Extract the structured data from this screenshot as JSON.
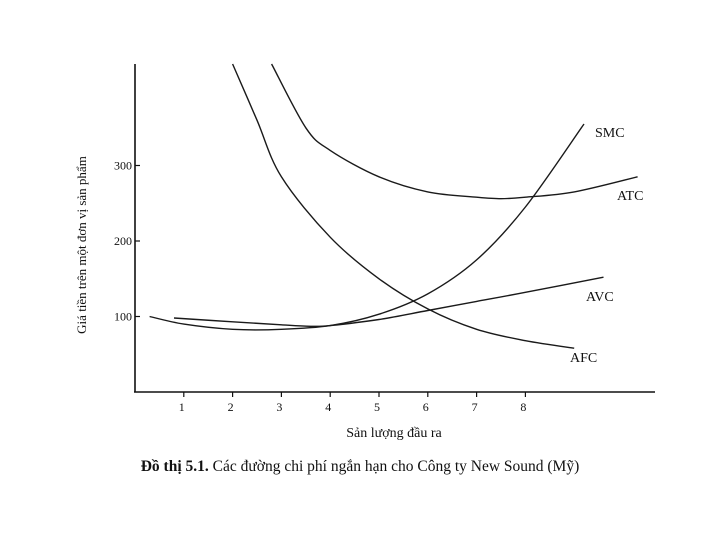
{
  "chart_data": {
    "type": "line",
    "title": "",
    "xlabel": "Sản lượng đầu ra",
    "ylabel": "Giá tiền trên một đơn vị sản phẩm",
    "x_ticks": [
      1,
      2,
      3,
      4,
      5,
      6,
      7,
      8
    ],
    "y_ticks": [
      100,
      200,
      300
    ],
    "xlim": [
      0,
      10.7
    ],
    "ylim": [
      0,
      440
    ],
    "grid": false,
    "series": [
      {
        "name": "SMC",
        "x": [
          0.3,
          1,
          2,
          3,
          4,
          5,
          6,
          7,
          8,
          9.2
        ],
        "y": [
          100,
          90,
          83,
          83,
          88,
          103,
          130,
          175,
          245,
          355
        ]
      },
      {
        "name": "ATC",
        "x": [
          2.8,
          3.5,
          4,
          5,
          6,
          7,
          7.5,
          8,
          9,
          10.3
        ],
        "y": [
          440,
          350,
          320,
          285,
          265,
          258,
          256,
          258,
          265,
          285
        ]
      },
      {
        "name": "AVC",
        "x": [
          0.8,
          2,
          3,
          3.6,
          4,
          5,
          6,
          7,
          8,
          9.6
        ],
        "y": [
          98,
          93,
          89,
          87,
          88,
          96,
          108,
          120,
          132,
          152
        ]
      },
      {
        "name": "AFC",
        "x": [
          2,
          2.5,
          3,
          4,
          5,
          6,
          7,
          8,
          9
        ],
        "y": [
          440,
          360,
          285,
          205,
          150,
          110,
          83,
          68,
          58
        ]
      }
    ]
  },
  "caption": {
    "prefix": "Đồ thị 5.1.",
    "text": " Các đường chi phí ngắn hạn cho Công ty New Sound (Mỹ)"
  }
}
